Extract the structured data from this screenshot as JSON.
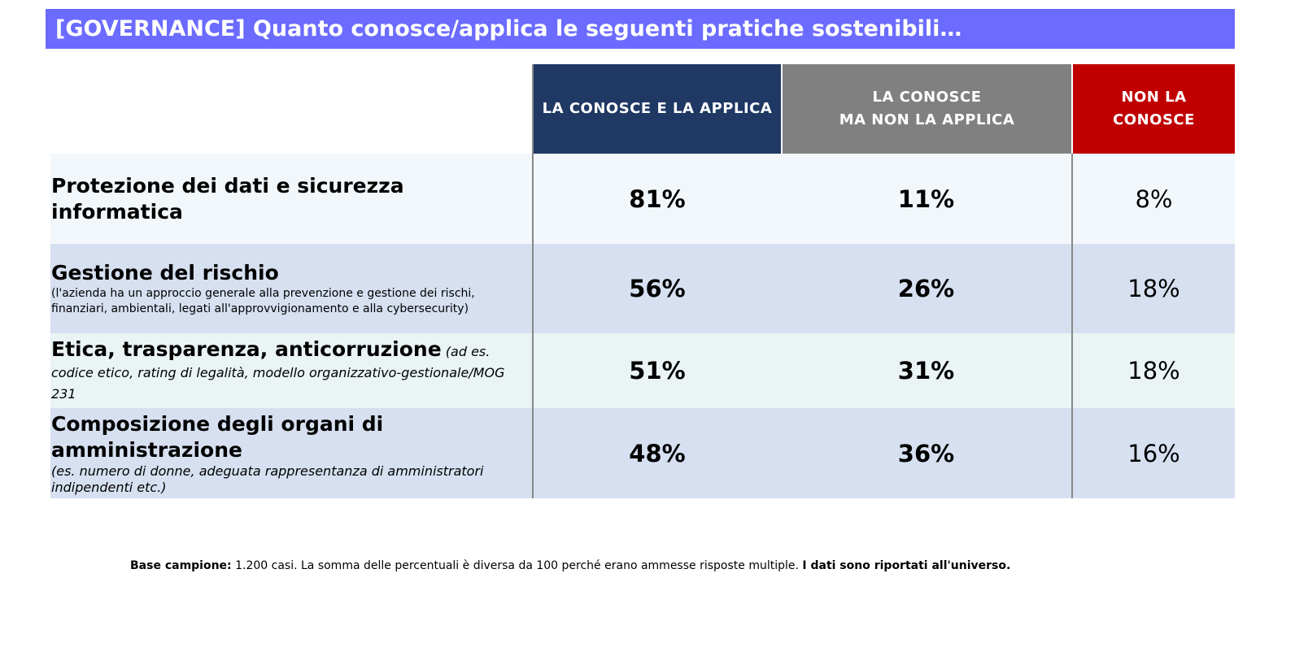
{
  "title": "[GOVERNANCE] Quanto conosce/applica le seguenti pratiche sostenibili…",
  "colors": {
    "title_bg": "#6b6bff",
    "col1_header": "#1f3864",
    "col2_header": "#808080",
    "col3_header": "#c00000",
    "row_light": "#f2f7fb",
    "row_blue": "#d6e0f0",
    "row_mint": "#eaf4f4"
  },
  "chart_data": {
    "type": "table",
    "columns": [
      "LA CONOSCE E LA APPLICA",
      "LA CONOSCE\nMA NON LA APPLICA",
      "NON LA\nCONOSCE"
    ],
    "rows": [
      {
        "label": "Protezione dei dati e sicurezza informatica",
        "inline_note": "",
        "note": "",
        "values": [
          "81%",
          "11%",
          "8%"
        ]
      },
      {
        "label": "Gestione del rischio",
        "inline_note": "",
        "note": "(l'azienda ha un approccio generale alla prevenzione e gestione dei rischi, finanziari, ambientali, legati all'approvvigionamento e alla cybersecurity)",
        "values": [
          "56%",
          "26%",
          "18%"
        ]
      },
      {
        "label": "Etica, trasparenza, anticorruzione",
        "inline_note": "(ad es. codice etico, rating di legalità, modello organizzativo-gestionale/MOG 231",
        "note": "",
        "values": [
          "51%",
          "31%",
          "18%"
        ]
      },
      {
        "label": "Composizione degli organi di amministrazione",
        "inline_note": "",
        "note": "(es. numero di donne, adeguata rappresentanza di amministratori indipendenti etc.)",
        "values": [
          "48%",
          "36%",
          "16%"
        ]
      }
    ]
  },
  "footnote": {
    "bold_start": "Base campione:",
    "text": " 1.200 casi. La somma delle percentuali è diversa da 100 perché erano ammesse risposte multiple. ",
    "bold_end": "I dati sono riportati all'universo."
  }
}
